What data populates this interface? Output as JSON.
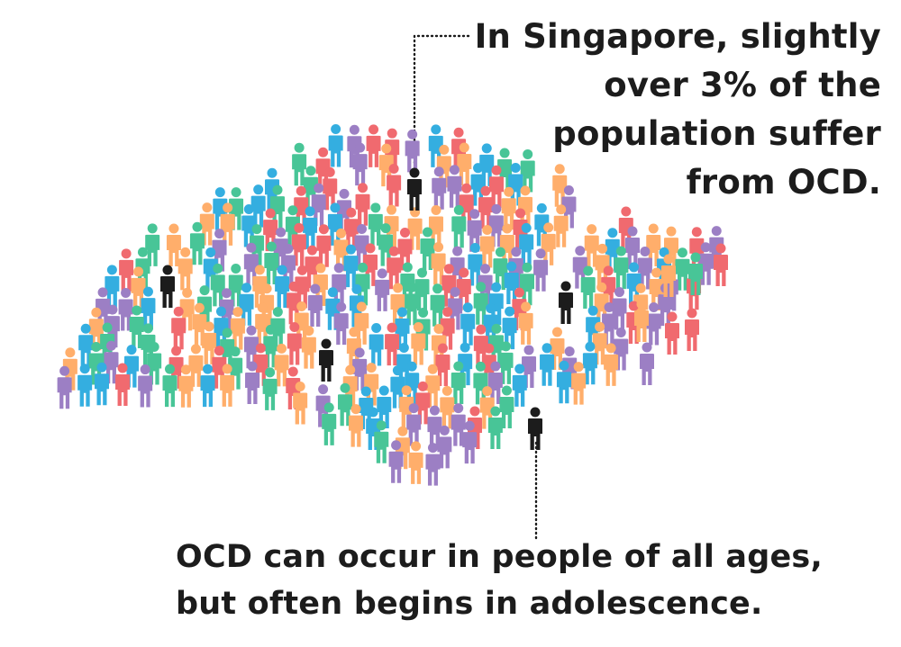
{
  "annotation_top": "In Singapore, slightly over 3% of the population suffer from OCD.",
  "annotation_bottom": "OCD can occur in people of all ages, but often begins in adolescence.",
  "figure_colors": [
    "#ffae6b",
    "#f06a6f",
    "#34aee0",
    "#48c597",
    "#9c7fc4"
  ],
  "highlight_color": "#1c1c1c"
}
